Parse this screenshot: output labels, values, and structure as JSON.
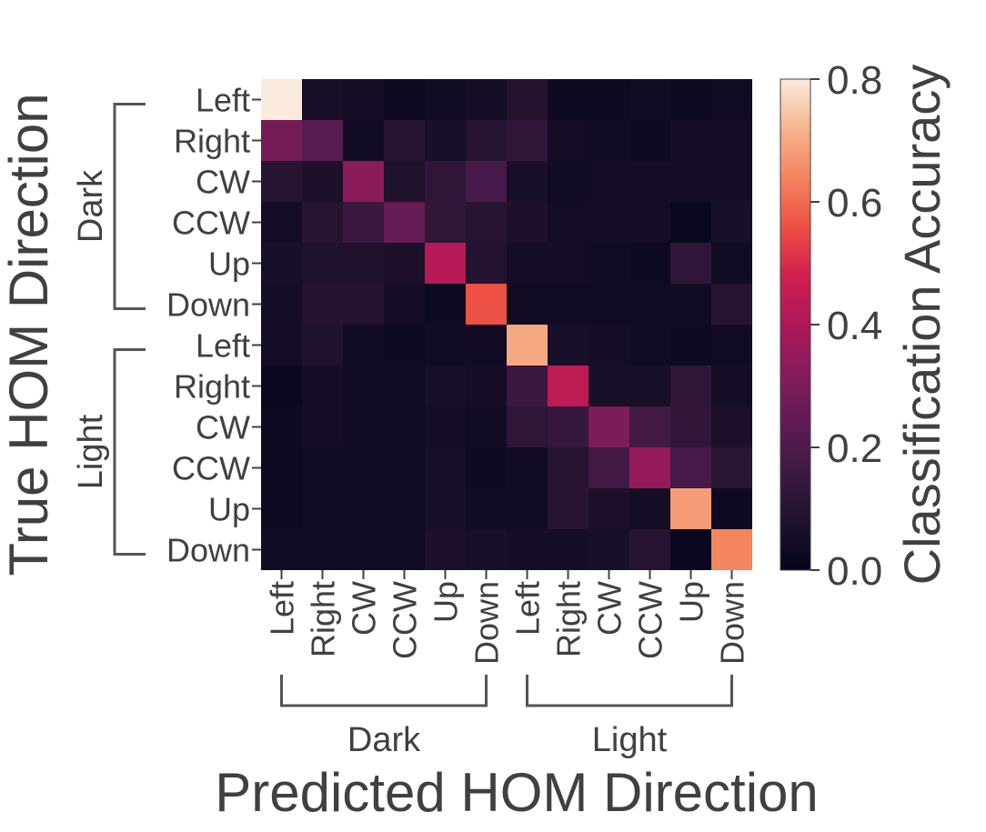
{
  "chart_data": {
    "type": "heatmap",
    "xlabel": "Predicted HOM Direction",
    "ylabel": "True HOM Direction",
    "x_tick_labels": [
      "Left",
      "Right",
      "CW",
      "CCW",
      "Up",
      "Down",
      "Left",
      "Right",
      "CW",
      "CCW",
      "Up",
      "Down"
    ],
    "y_tick_labels": [
      "Left",
      "Right",
      "CW",
      "CCW",
      "Up",
      "Down",
      "Left",
      "Right",
      "CW",
      "CCW",
      "Up",
      "Down"
    ],
    "x_groups": [
      {
        "label": "Dark",
        "start": 0,
        "end": 5
      },
      {
        "label": "Light",
        "start": 6,
        "end": 11
      }
    ],
    "y_groups": [
      {
        "label": "Dark",
        "start": 0,
        "end": 5
      },
      {
        "label": "Light",
        "start": 6,
        "end": 11
      }
    ],
    "colorbar": {
      "title": "Classification Accuracy",
      "range": [
        0.0,
        0.8
      ],
      "tick_values": [
        0.0,
        0.2,
        0.4,
        0.6,
        0.8
      ],
      "tick_labels": [
        "0.0",
        "0.2",
        "0.4",
        "0.6",
        "0.8"
      ],
      "colormap": "rocket"
    },
    "values": [
      [
        0.8,
        0.06,
        0.05,
        0.03,
        0.04,
        0.05,
        0.09,
        0.03,
        0.03,
        0.04,
        0.03,
        0.04
      ],
      [
        0.28,
        0.22,
        0.04,
        0.1,
        0.06,
        0.1,
        0.12,
        0.05,
        0.04,
        0.03,
        0.05,
        0.05
      ],
      [
        0.1,
        0.07,
        0.33,
        0.08,
        0.12,
        0.18,
        0.06,
        0.04,
        0.05,
        0.05,
        0.05,
        0.05
      ],
      [
        0.05,
        0.1,
        0.15,
        0.25,
        0.12,
        0.1,
        0.07,
        0.05,
        0.05,
        0.05,
        0.02,
        0.06
      ],
      [
        0.06,
        0.08,
        0.08,
        0.07,
        0.42,
        0.09,
        0.05,
        0.05,
        0.04,
        0.03,
        0.12,
        0.04
      ],
      [
        0.05,
        0.09,
        0.09,
        0.05,
        0.03,
        0.56,
        0.04,
        0.04,
        0.04,
        0.04,
        0.04,
        0.1
      ],
      [
        0.05,
        0.08,
        0.04,
        0.03,
        0.04,
        0.04,
        0.7,
        0.06,
        0.05,
        0.04,
        0.03,
        0.04
      ],
      [
        0.02,
        0.05,
        0.04,
        0.04,
        0.06,
        0.05,
        0.15,
        0.44,
        0.06,
        0.06,
        0.12,
        0.05
      ],
      [
        0.03,
        0.05,
        0.04,
        0.04,
        0.05,
        0.04,
        0.12,
        0.14,
        0.3,
        0.17,
        0.13,
        0.07
      ],
      [
        0.03,
        0.04,
        0.04,
        0.04,
        0.06,
        0.03,
        0.04,
        0.1,
        0.17,
        0.35,
        0.18,
        0.11
      ],
      [
        0.03,
        0.04,
        0.04,
        0.04,
        0.06,
        0.04,
        0.04,
        0.1,
        0.07,
        0.05,
        0.68,
        0.03
      ],
      [
        0.04,
        0.04,
        0.04,
        0.04,
        0.07,
        0.06,
        0.05,
        0.05,
        0.06,
        0.1,
        0.02,
        0.64
      ]
    ]
  }
}
